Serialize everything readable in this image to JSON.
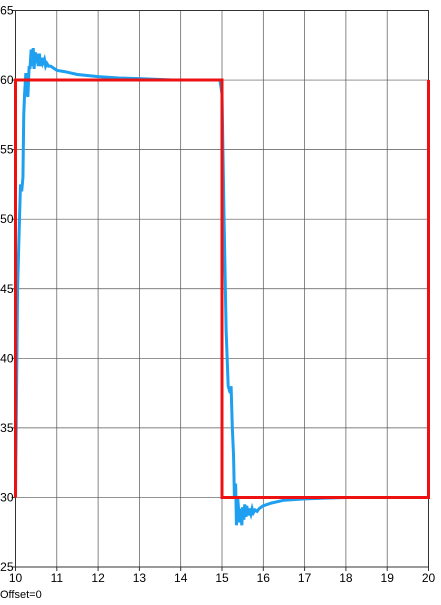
{
  "chart_data": {
    "type": "line",
    "title": "",
    "xlabel": "",
    "ylabel": "",
    "xlim": [
      10,
      20
    ],
    "ylim": [
      25,
      65
    ],
    "grid": true,
    "x_ticks": [
      "10",
      "11",
      "12",
      "13",
      "14",
      "15",
      "16",
      "17",
      "18",
      "19",
      "20"
    ],
    "y_ticks": [
      "25",
      "30",
      "35",
      "40",
      "45",
      "50",
      "55",
      "60",
      "65"
    ],
    "series": [
      {
        "color": "#1e9ff0",
        "x": [
          10.0,
          10.05,
          10.12,
          10.15,
          10.18,
          10.2,
          10.22,
          10.25,
          10.28,
          10.3,
          10.33,
          10.35,
          10.38,
          10.4,
          10.43,
          10.45,
          10.48,
          10.5,
          10.53,
          10.55,
          10.58,
          10.6,
          10.63,
          10.66,
          10.7,
          10.73,
          10.76,
          10.8,
          10.85,
          10.9,
          10.95,
          11.0,
          11.2,
          11.5,
          12.0,
          12.5,
          13.0,
          13.8,
          14.5,
          14.95,
          15.0,
          15.05,
          15.1,
          15.15,
          15.2,
          15.22,
          15.25,
          15.28,
          15.3,
          15.33,
          15.35,
          15.38,
          15.4,
          15.43,
          15.45,
          15.48,
          15.5,
          15.53,
          15.55,
          15.58,
          15.6,
          15.63,
          15.66,
          15.7,
          15.73,
          15.76,
          15.8,
          15.85,
          15.9,
          15.95,
          16.0,
          16.2,
          16.5,
          17.0,
          17.5,
          18.0,
          18.5,
          19.0
        ],
        "y": [
          30.0,
          45.0,
          52.5,
          52.0,
          53.0,
          57.5,
          59.0,
          60.5,
          59.0,
          58.8,
          61.0,
          60.8,
          62.2,
          61.0,
          62.3,
          60.8,
          62.0,
          61.2,
          61.9,
          61.0,
          61.9,
          61.0,
          61.6,
          61.2,
          61.5,
          61.0,
          61.2,
          61.0,
          61.0,
          60.9,
          60.8,
          60.7,
          60.6,
          60.4,
          60.25,
          60.15,
          60.1,
          60.0,
          60.0,
          60.0,
          59.0,
          50.0,
          42.0,
          38.0,
          37.5,
          38.0,
          35.0,
          33.0,
          30.0,
          31.0,
          28.0,
          30.0,
          29.2,
          28.2,
          29.2,
          28.0,
          29.3,
          28.4,
          29.5,
          28.6,
          29.4,
          28.7,
          29.2,
          28.8,
          29.2,
          28.9,
          29.1,
          29.0,
          29.2,
          29.3,
          29.4,
          29.6,
          29.8,
          29.9,
          29.95,
          30.0,
          30.0,
          30.0
        ]
      },
      {
        "color": "#ee1111",
        "x": [
          10.0,
          10.0,
          15.0,
          15.0,
          20.0,
          20.0
        ],
        "y": [
          30.0,
          60.0,
          60.0,
          30.0,
          30.0,
          60.0
        ]
      }
    ]
  },
  "footer": {
    "offset_text": "Offset=0"
  }
}
